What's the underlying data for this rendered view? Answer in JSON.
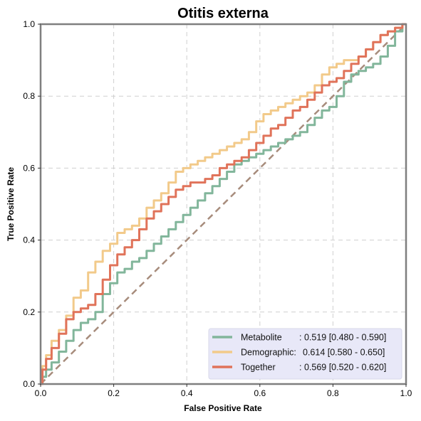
{
  "chart_data": {
    "type": "line",
    "title": "Otitis externa",
    "xlabel": "False Positive Rate",
    "ylabel": "True Positive Rate",
    "xlim": [
      0,
      1
    ],
    "ylim": [
      0,
      1
    ],
    "xticks": [
      "0.0",
      "0.2",
      "0.4",
      "0.6",
      "0.8",
      "1.0"
    ],
    "yticks": [
      "0.0",
      "0.2",
      "0.4",
      "0.6",
      "0.8",
      "1.0"
    ],
    "grid": true,
    "legend_position": "lower-right",
    "legend_background": "#e8e8f8",
    "diagonal": {
      "x": [
        0,
        1
      ],
      "y": [
        0,
        1
      ],
      "color": "#a78c7c",
      "style": "dashed"
    },
    "series": [
      {
        "name": "Metabolite",
        "auc_text": ": 0.519 [0.480 - 0.590]",
        "color": "#82b69b",
        "x": [
          0,
          0.01,
          0.02,
          0.04,
          0.06,
          0.08,
          0.1,
          0.12,
          0.14,
          0.16,
          0.18,
          0.2,
          0.22,
          0.24,
          0.26,
          0.28,
          0.3,
          0.32,
          0.34,
          0.36,
          0.38,
          0.4,
          0.42,
          0.44,
          0.46,
          0.48,
          0.5,
          0.52,
          0.54,
          0.56,
          0.58,
          0.6,
          0.62,
          0.64,
          0.66,
          0.68,
          0.7,
          0.72,
          0.74,
          0.76,
          0.78,
          0.8,
          0.82,
          0.84,
          0.86,
          0.88,
          0.9,
          0.92,
          0.94,
          0.96,
          0.98,
          1.0
        ],
        "y": [
          0,
          0.02,
          0.04,
          0.06,
          0.09,
          0.12,
          0.15,
          0.17,
          0.18,
          0.2,
          0.25,
          0.28,
          0.31,
          0.32,
          0.34,
          0.35,
          0.37,
          0.39,
          0.41,
          0.43,
          0.45,
          0.47,
          0.49,
          0.51,
          0.53,
          0.55,
          0.57,
          0.59,
          0.61,
          0.62,
          0.63,
          0.64,
          0.65,
          0.66,
          0.67,
          0.68,
          0.69,
          0.7,
          0.72,
          0.74,
          0.76,
          0.77,
          0.8,
          0.84,
          0.86,
          0.87,
          0.88,
          0.89,
          0.91,
          0.94,
          0.98,
          1.0
        ]
      },
      {
        "name": "Demographic:",
        "auc_text": " 0.614 [0.580 - 0.650]",
        "color": "#f2ca8a",
        "x": [
          0,
          0.01,
          0.02,
          0.04,
          0.06,
          0.08,
          0.1,
          0.12,
          0.14,
          0.16,
          0.18,
          0.2,
          0.22,
          0.24,
          0.26,
          0.28,
          0.3,
          0.32,
          0.34,
          0.36,
          0.38,
          0.4,
          0.42,
          0.44,
          0.46,
          0.48,
          0.5,
          0.52,
          0.54,
          0.56,
          0.58,
          0.6,
          0.62,
          0.64,
          0.66,
          0.68,
          0.7,
          0.72,
          0.74,
          0.76,
          0.78,
          0.8,
          0.82,
          0.84,
          0.86,
          0.88,
          0.9,
          0.92,
          0.94,
          0.96,
          0.98,
          1.0
        ],
        "y": [
          0,
          0.05,
          0.08,
          0.12,
          0.15,
          0.19,
          0.24,
          0.26,
          0.31,
          0.34,
          0.37,
          0.39,
          0.42,
          0.43,
          0.44,
          0.46,
          0.49,
          0.51,
          0.53,
          0.56,
          0.59,
          0.6,
          0.61,
          0.62,
          0.63,
          0.64,
          0.65,
          0.66,
          0.67,
          0.68,
          0.7,
          0.73,
          0.75,
          0.76,
          0.77,
          0.78,
          0.79,
          0.8,
          0.81,
          0.83,
          0.86,
          0.88,
          0.89,
          0.9,
          0.9,
          0.91,
          0.93,
          0.95,
          0.97,
          0.98,
          0.99,
          1.0
        ]
      },
      {
        "name": "Together",
        "auc_text": ": 0.569 [0.520 - 0.620]",
        "color": "#e0735a",
        "x": [
          0,
          0.01,
          0.02,
          0.04,
          0.06,
          0.08,
          0.1,
          0.12,
          0.14,
          0.16,
          0.18,
          0.2,
          0.22,
          0.24,
          0.26,
          0.28,
          0.3,
          0.32,
          0.34,
          0.36,
          0.38,
          0.4,
          0.42,
          0.44,
          0.46,
          0.48,
          0.5,
          0.52,
          0.54,
          0.56,
          0.58,
          0.6,
          0.62,
          0.64,
          0.66,
          0.68,
          0.7,
          0.72,
          0.74,
          0.76,
          0.78,
          0.8,
          0.82,
          0.84,
          0.86,
          0.88,
          0.9,
          0.92,
          0.94,
          0.96,
          0.98,
          1.0
        ],
        "y": [
          0,
          0.04,
          0.07,
          0.1,
          0.14,
          0.18,
          0.2,
          0.21,
          0.22,
          0.25,
          0.29,
          0.33,
          0.36,
          0.38,
          0.4,
          0.43,
          0.46,
          0.48,
          0.5,
          0.52,
          0.54,
          0.55,
          0.56,
          0.56,
          0.57,
          0.58,
          0.6,
          0.61,
          0.62,
          0.63,
          0.65,
          0.67,
          0.69,
          0.71,
          0.72,
          0.74,
          0.76,
          0.77,
          0.79,
          0.81,
          0.83,
          0.84,
          0.85,
          0.87,
          0.89,
          0.91,
          0.93,
          0.95,
          0.97,
          0.98,
          0.99,
          1.0
        ]
      }
    ]
  }
}
